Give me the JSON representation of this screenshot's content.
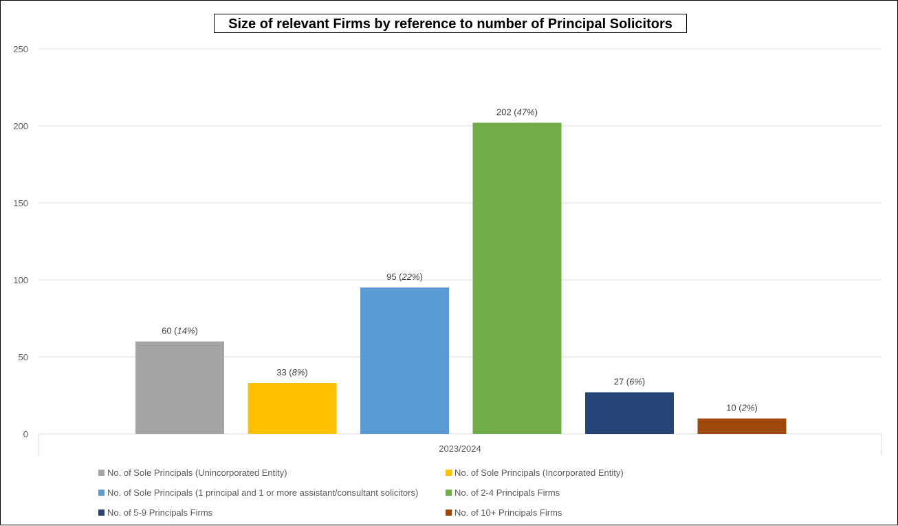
{
  "chart_data": {
    "type": "bar",
    "title": "Size of relevant Firms by reference to number of Principal Solicitors",
    "categories": [
      "2023/2024"
    ],
    "ylim": [
      0,
      250
    ],
    "yticks": [
      "0",
      "50",
      "100",
      "150",
      "200",
      "250"
    ],
    "ytick_values": [
      0,
      50,
      100,
      150,
      200,
      250
    ],
    "grid": true,
    "legend_position": "bottom",
    "series": [
      {
        "name": "No. of Sole Principals (Unincorporated Entity)",
        "values": [
          60
        ],
        "value_label": "60",
        "pct_label": "14%",
        "color": "#a5a5a5"
      },
      {
        "name": "No. of Sole Principals (Incorporated Entity)",
        "values": [
          33
        ],
        "value_label": "33",
        "pct_label": "8%",
        "color": "#ffc000"
      },
      {
        "name": "No. of Sole Principals (1 principal and 1 or more assistant/consultant solicitors)",
        "values": [
          95
        ],
        "value_label": "95",
        "pct_label": "22%",
        "color": "#5b9bd5"
      },
      {
        "name": "No. of 2-4 Principals Firms",
        "values": [
          202
        ],
        "value_label": "202",
        "pct_label": "47%",
        "color": "#70ad47"
      },
      {
        "name": "No. of 5-9 Principals Firms",
        "values": [
          27
        ],
        "value_label": "27",
        "pct_label": "6%",
        "color": "#264478"
      },
      {
        "name": "No. of 10+ Principals Firms",
        "values": [
          10
        ],
        "value_label": "10",
        "pct_label": "2%",
        "color": "#9e480e"
      }
    ]
  }
}
